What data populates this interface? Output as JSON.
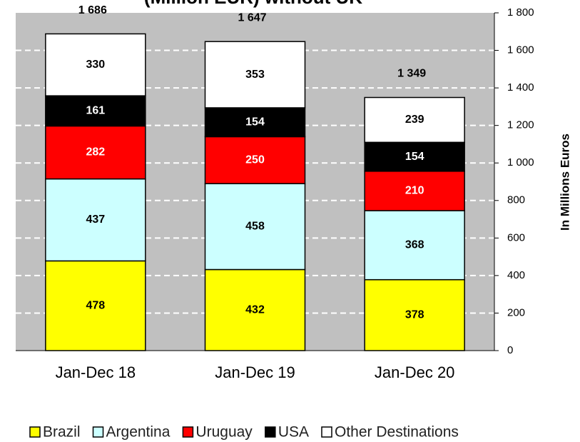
{
  "chart_data": {
    "type": "stacked_bar",
    "title": "(Million EUR) without UK",
    "y_axis_label": "In Millions Euros",
    "categories": [
      "Jan-Dec 18",
      "Jan-Dec 19",
      "Jan-Dec 20"
    ],
    "series": [
      {
        "name": "Brazil",
        "color": "#ffff00",
        "values": [
          478,
          432,
          378
        ]
      },
      {
        "name": "Argentina",
        "color": "#ccffff",
        "values": [
          437,
          458,
          368
        ]
      },
      {
        "name": "Uruguay",
        "color": "#ff0000",
        "values": [
          282,
          250,
          210
        ]
      },
      {
        "name": "USA",
        "color": "#000000",
        "values": [
          161,
          154,
          154
        ]
      },
      {
        "name": "Other Destinations",
        "color": "#ffffff",
        "values": [
          330,
          353,
          239
        ]
      }
    ],
    "totals": {
      "values": [
        1686,
        1647,
        1349
      ],
      "value_labels": [
        "1 686",
        "1 647",
        "1 349"
      ]
    },
    "ylim": [
      0,
      1800
    ],
    "yticks": [
      0,
      200,
      400,
      600,
      800,
      {
        "value": 1000,
        "label": "1 000"
      },
      {
        "value": 1200,
        "label": "1 200"
      },
      {
        "value": 1400,
        "label": "1 400"
      },
      {
        "value": 1600,
        "label": "1 600"
      },
      {
        "value": 1800,
        "label": "1 800"
      }
    ],
    "grid": true,
    "y_axis_side": "right",
    "legend": "bottom"
  }
}
